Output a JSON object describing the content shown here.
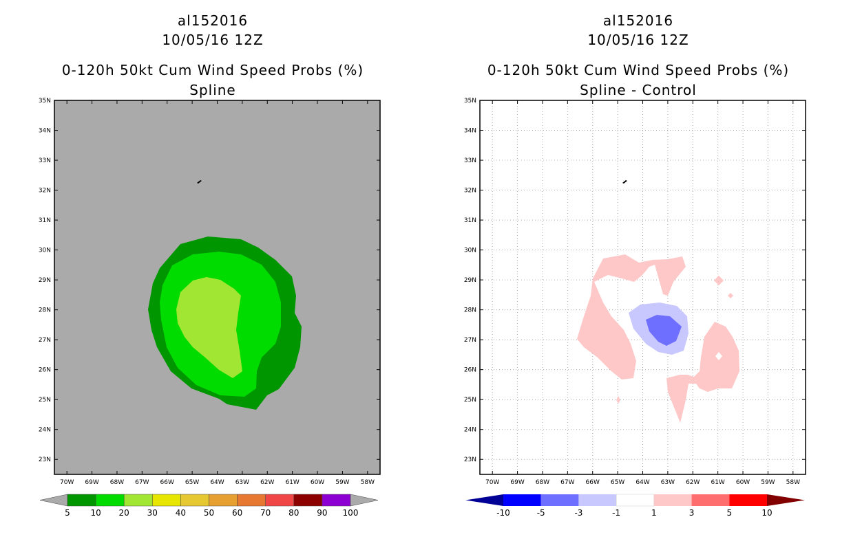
{
  "colors": {
    "background_left": "#aaaaaa",
    "prob": [
      "#009600",
      "#00dc00",
      "#a0e632",
      "#e6e600",
      "#e6c832",
      "#e6a032",
      "#e67832",
      "#f04646",
      "#8c0000",
      "#8c00d2"
    ],
    "diff": [
      "#000096",
      "#0000ff",
      "#6e6eff",
      "#c8c8ff",
      "#ffffff",
      "#ffc8c8",
      "#ff6e6e",
      "#ff0000",
      "#820000"
    ]
  },
  "left_panel": {
    "title_storm": "al152016",
    "title_date": "10/05/16 12Z",
    "title_product": "0-120h 50kt Cum Wind Speed Probs (%)",
    "title_method": "Spline",
    "colorbar_labels": [
      "5",
      "10",
      "20",
      "30",
      "40",
      "50",
      "60",
      "70",
      "80",
      "90",
      "100"
    ]
  },
  "right_panel": {
    "title_storm": "al152016",
    "title_date": "10/05/16 12Z",
    "title_product": "0-120h 50kt Cum Wind Speed Probs (%)",
    "title_method": "Spline - Control",
    "colorbar_labels": [
      "-10",
      "-5",
      "-3",
      "-1",
      "1",
      "3",
      "5",
      "10"
    ]
  },
  "axes": {
    "lat_labels": [
      "35N",
      "34N",
      "33N",
      "32N",
      "31N",
      "30N",
      "29N",
      "28N",
      "27N",
      "26N",
      "25N",
      "24N",
      "23N"
    ],
    "lon_labels": [
      "70W",
      "69W",
      "68W",
      "67W",
      "66W",
      "65W",
      "64W",
      "63W",
      "62W",
      "61W",
      "60W",
      "59W",
      "58W"
    ]
  }
}
